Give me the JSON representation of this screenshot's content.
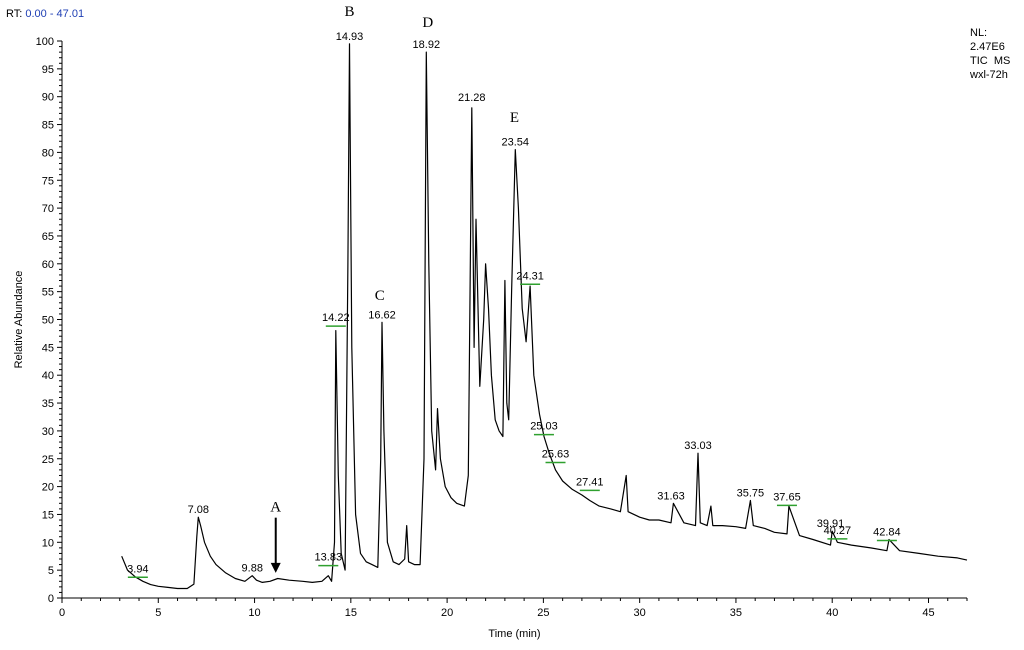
{
  "header": {
    "rt_prefix": "RT:",
    "rt_range": "0.00 - 47.01",
    "nl_label": "NL:",
    "nl_value": "2.47E6",
    "scan_type": "TIC  MS",
    "sample": "wxl-72h",
    "rt_color": "#1f3fb4"
  },
  "chart_data": {
    "type": "line",
    "xlabel": "Time (min)",
    "ylabel": "Relative Abundance",
    "xlim": [
      0,
      47
    ],
    "ylim": [
      0,
      100
    ],
    "xticks": [
      0,
      5,
      10,
      15,
      20,
      25,
      30,
      35,
      40,
      45
    ],
    "yticks": [
      0,
      5,
      10,
      15,
      20,
      25,
      30,
      35,
      40,
      45,
      50,
      55,
      60,
      65,
      70,
      75,
      80,
      85,
      90,
      95,
      100
    ],
    "line_color": "#000000",
    "marker_color": "#2fa02f",
    "series": [
      {
        "x": [
          3.1,
          3.4,
          3.8,
          4.2,
          4.6,
          5.0,
          5.5,
          6.0,
          6.5,
          6.85,
          7.0,
          7.08,
          7.2,
          7.4,
          7.7,
          8.0,
          8.5,
          9.0,
          9.5,
          9.88,
          10.1,
          10.4,
          10.8,
          11.2,
          11.8,
          12.5,
          13.0,
          13.5,
          13.83,
          14.0,
          14.15,
          14.22,
          14.35,
          14.5,
          14.7,
          14.85,
          14.93,
          15.05,
          15.25,
          15.5,
          15.8,
          16.1,
          16.4,
          16.55,
          16.62,
          16.72,
          16.9,
          17.2,
          17.5,
          17.8,
          17.9,
          18.0,
          18.3,
          18.6,
          18.8,
          18.92,
          19.05,
          19.2,
          19.4,
          19.5,
          19.65,
          19.9,
          20.2,
          20.5,
          20.9,
          21.1,
          21.28,
          21.4,
          21.5,
          21.7,
          21.9,
          22.0,
          22.15,
          22.3,
          22.5,
          22.7,
          22.9,
          23.0,
          23.1,
          23.2,
          23.35,
          23.54,
          23.7,
          23.9,
          24.1,
          24.31,
          24.5,
          24.8,
          25.03,
          25.3,
          25.63,
          26.0,
          26.5,
          27.0,
          27.41,
          27.9,
          28.5,
          29.0,
          29.3,
          29.4,
          30.0,
          30.5,
          31.0,
          31.63,
          31.75,
          32.3,
          32.9,
          33.03,
          33.15,
          33.5,
          33.7,
          33.8,
          34.3,
          35.0,
          35.5,
          35.75,
          35.9,
          36.5,
          37.0,
          37.65,
          37.75,
          38.3,
          39.0,
          39.91,
          40.0,
          40.27,
          41.0,
          42.0,
          42.84,
          42.95,
          43.5,
          44.5,
          45.5,
          46.5,
          47.0
        ],
        "y": [
          7.5,
          5.0,
          3.8,
          3.0,
          2.4,
          2.1,
          1.9,
          1.7,
          1.7,
          2.5,
          11.0,
          14.5,
          13.0,
          10.0,
          7.5,
          6.0,
          4.5,
          3.5,
          3.0,
          4.0,
          3.2,
          2.8,
          3.0,
          3.5,
          3.2,
          3.0,
          2.8,
          3.0,
          4.0,
          3.0,
          10.0,
          48.0,
          22.0,
          8.0,
          5.0,
          60.0,
          99.5,
          45.0,
          15.0,
          8.0,
          6.5,
          6.0,
          5.5,
          25.0,
          49.5,
          30.0,
          10.0,
          6.5,
          6.0,
          7.0,
          13.0,
          6.5,
          6.0,
          6.0,
          25.0,
          98.0,
          60.0,
          30.0,
          23.0,
          34.0,
          25.0,
          20.0,
          18.0,
          17.0,
          16.5,
          22.0,
          88.0,
          45.0,
          68.0,
          38.0,
          50.0,
          60.0,
          52.0,
          40.0,
          32.0,
          30.0,
          29.0,
          57.0,
          35.0,
          32.0,
          55.0,
          80.5,
          70.0,
          52.0,
          46.0,
          56.0,
          40.0,
          33.0,
          29.0,
          26.0,
          23.0,
          21.0,
          19.5,
          18.5,
          17.5,
          16.5,
          16.0,
          15.5,
          22.0,
          15.5,
          14.5,
          14.0,
          14.0,
          13.5,
          17.0,
          13.5,
          13.0,
          26.0,
          13.5,
          13.0,
          16.5,
          13.0,
          13.0,
          12.8,
          12.5,
          17.5,
          13.0,
          12.5,
          11.8,
          11.5,
          16.5,
          11.2,
          10.5,
          9.5,
          12.0,
          10.0,
          9.5,
          9.0,
          8.5,
          10.5,
          8.5,
          8.0,
          7.5,
          7.2,
          6.8
        ]
      }
    ],
    "peak_labels": [
      {
        "text": "3.94",
        "x": 3.94,
        "y": 3.9,
        "marker": true
      },
      {
        "text": "7.08",
        "x": 7.08,
        "y": 14.5,
        "marker": false
      },
      {
        "text": "9.88",
        "x": 9.88,
        "y": 4.0,
        "marker": false
      },
      {
        "text": "13.83",
        "x": 13.83,
        "y": 6.0,
        "marker": true
      },
      {
        "text": "14.22",
        "x": 14.22,
        "y": 49.0,
        "marker": true
      },
      {
        "text": "14.93",
        "x": 14.93,
        "y": 99.5,
        "marker": false
      },
      {
        "text": "16.62",
        "x": 16.62,
        "y": 49.5,
        "marker": false
      },
      {
        "text": "18.92",
        "x": 18.92,
        "y": 98.0,
        "marker": false
      },
      {
        "text": "21.28",
        "x": 21.28,
        "y": 88.5,
        "marker": false
      },
      {
        "text": "23.54",
        "x": 23.54,
        "y": 80.5,
        "marker": false
      },
      {
        "text": "24.31",
        "x": 24.31,
        "y": 56.5,
        "marker": true
      },
      {
        "text": "25.03",
        "x": 25.03,
        "y": 29.5,
        "marker": true
      },
      {
        "text": "25.63",
        "x": 25.63,
        "y": 24.5,
        "marker": true
      },
      {
        "text": "27.41",
        "x": 27.41,
        "y": 19.5,
        "marker": true
      },
      {
        "text": "31.63",
        "x": 31.63,
        "y": 17.0,
        "marker": false
      },
      {
        "text": "33.03",
        "x": 33.03,
        "y": 26.0,
        "marker": false
      },
      {
        "text": "35.75",
        "x": 35.75,
        "y": 17.5,
        "marker": false
      },
      {
        "text": "37.65",
        "x": 37.65,
        "y": 16.8,
        "marker": true
      },
      {
        "text": "39.91",
        "x": 39.91,
        "y": 12.0,
        "marker": false
      },
      {
        "text": "40.27",
        "x": 40.27,
        "y": 10.8,
        "marker": true
      },
      {
        "text": "42.84",
        "x": 42.84,
        "y": 10.5,
        "marker": true
      }
    ],
    "annotations": [
      {
        "text": "A",
        "x": 11.1,
        "y": 15.5,
        "arrow": true,
        "arrow_to": 4.5
      },
      {
        "text": "B",
        "x": 14.93,
        "y": 104.5,
        "arrow": false
      },
      {
        "text": "C",
        "x": 16.5,
        "y": 53.5,
        "arrow": false
      },
      {
        "text": "D",
        "x": 19.0,
        "y": 102.5,
        "arrow": false
      },
      {
        "text": "E",
        "x": 23.5,
        "y": 85.5,
        "arrow": false
      }
    ]
  }
}
